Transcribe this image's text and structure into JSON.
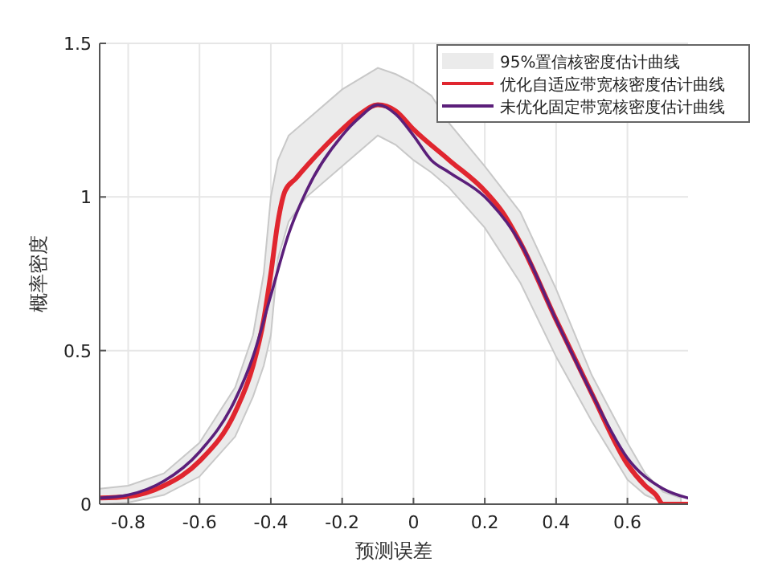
{
  "chart_data": {
    "type": "line",
    "xlabel": "预测误差",
    "ylabel": "概率密度",
    "xlim": [
      -0.88,
      0.77
    ],
    "ylim": [
      0,
      1.5
    ],
    "xticks": [
      -0.8,
      -0.6,
      -0.4,
      -0.2,
      0,
      0.2,
      0.4,
      0.6
    ],
    "yticks": [
      0,
      0.5,
      1,
      1.5
    ],
    "grid": true,
    "legend": "top right",
    "line_style": "solid",
    "series": [
      {
        "name": "95%置信核密度估计曲线",
        "type": "line",
        "color": "#ebebeb",
        "x": [
          -0.88,
          -0.8,
          -0.7,
          -0.6,
          -0.5,
          -0.45,
          -0.42,
          -0.4,
          -0.38,
          -0.35,
          -0.3,
          -0.2,
          -0.1,
          -0.05,
          0,
          0.05,
          0.1,
          0.2,
          0.3,
          0.4,
          0.5,
          0.6,
          0.65,
          0.7,
          0.75
        ],
        "values": [
          null,
          null,
          null,
          null,
          null,
          null,
          null,
          null,
          null,
          null,
          null,
          null,
          null,
          null,
          null,
          null,
          null,
          null,
          null,
          null,
          null,
          null,
          null,
          null,
          null
        ],
        "upper": [
          0.05,
          0.06,
          0.1,
          0.2,
          0.38,
          0.55,
          0.75,
          1.0,
          1.12,
          1.2,
          1.25,
          1.35,
          1.42,
          1.4,
          1.37,
          1.33,
          1.24,
          1.1,
          0.95,
          0.7,
          0.42,
          0.2,
          0.1,
          0.04,
          0.02
        ],
        "lower": [
          0,
          0.005,
          0.03,
          0.09,
          0.22,
          0.35,
          0.45,
          0.55,
          0.8,
          0.92,
          1.0,
          1.1,
          1.2,
          1.17,
          1.12,
          1.08,
          1.03,
          0.9,
          0.72,
          0.48,
          0.27,
          0.08,
          0.03,
          0.005,
          0
        ]
      },
      {
        "name": "优化自适应带宽核密度估计曲线",
        "color": "#e0262f",
        "x": [
          -0.88,
          -0.8,
          -0.7,
          -0.6,
          -0.5,
          -0.45,
          -0.42,
          -0.4,
          -0.38,
          -0.36,
          -0.33,
          -0.3,
          -0.2,
          -0.15,
          -0.1,
          -0.05,
          0,
          0.1,
          0.2,
          0.25,
          0.3,
          0.4,
          0.5,
          0.6,
          0.65,
          0.68,
          0.7,
          0.77
        ],
        "values": [
          0.02,
          0.025,
          0.06,
          0.14,
          0.3,
          0.45,
          0.6,
          0.75,
          0.92,
          1.02,
          1.06,
          1.1,
          1.22,
          1.27,
          1.3,
          1.28,
          1.22,
          1.12,
          1.02,
          0.95,
          0.85,
          0.6,
          0.36,
          0.13,
          0.06,
          0.03,
          0,
          0
        ]
      },
      {
        "name": "未优化固定带宽核密度估计曲线",
        "color": "#5b1f7a",
        "x": [
          -0.88,
          -0.8,
          -0.7,
          -0.6,
          -0.5,
          -0.45,
          -0.4,
          -0.35,
          -0.3,
          -0.2,
          -0.15,
          -0.1,
          -0.05,
          0,
          0.05,
          0.1,
          0.2,
          0.3,
          0.4,
          0.5,
          0.6,
          0.7,
          0.77
        ],
        "values": [
          0.02,
          0.03,
          0.075,
          0.17,
          0.34,
          0.48,
          0.68,
          0.88,
          1.02,
          1.2,
          1.26,
          1.3,
          1.27,
          1.2,
          1.12,
          1.08,
          1.0,
          0.85,
          0.6,
          0.36,
          0.15,
          0.05,
          0.02
        ]
      }
    ]
  }
}
